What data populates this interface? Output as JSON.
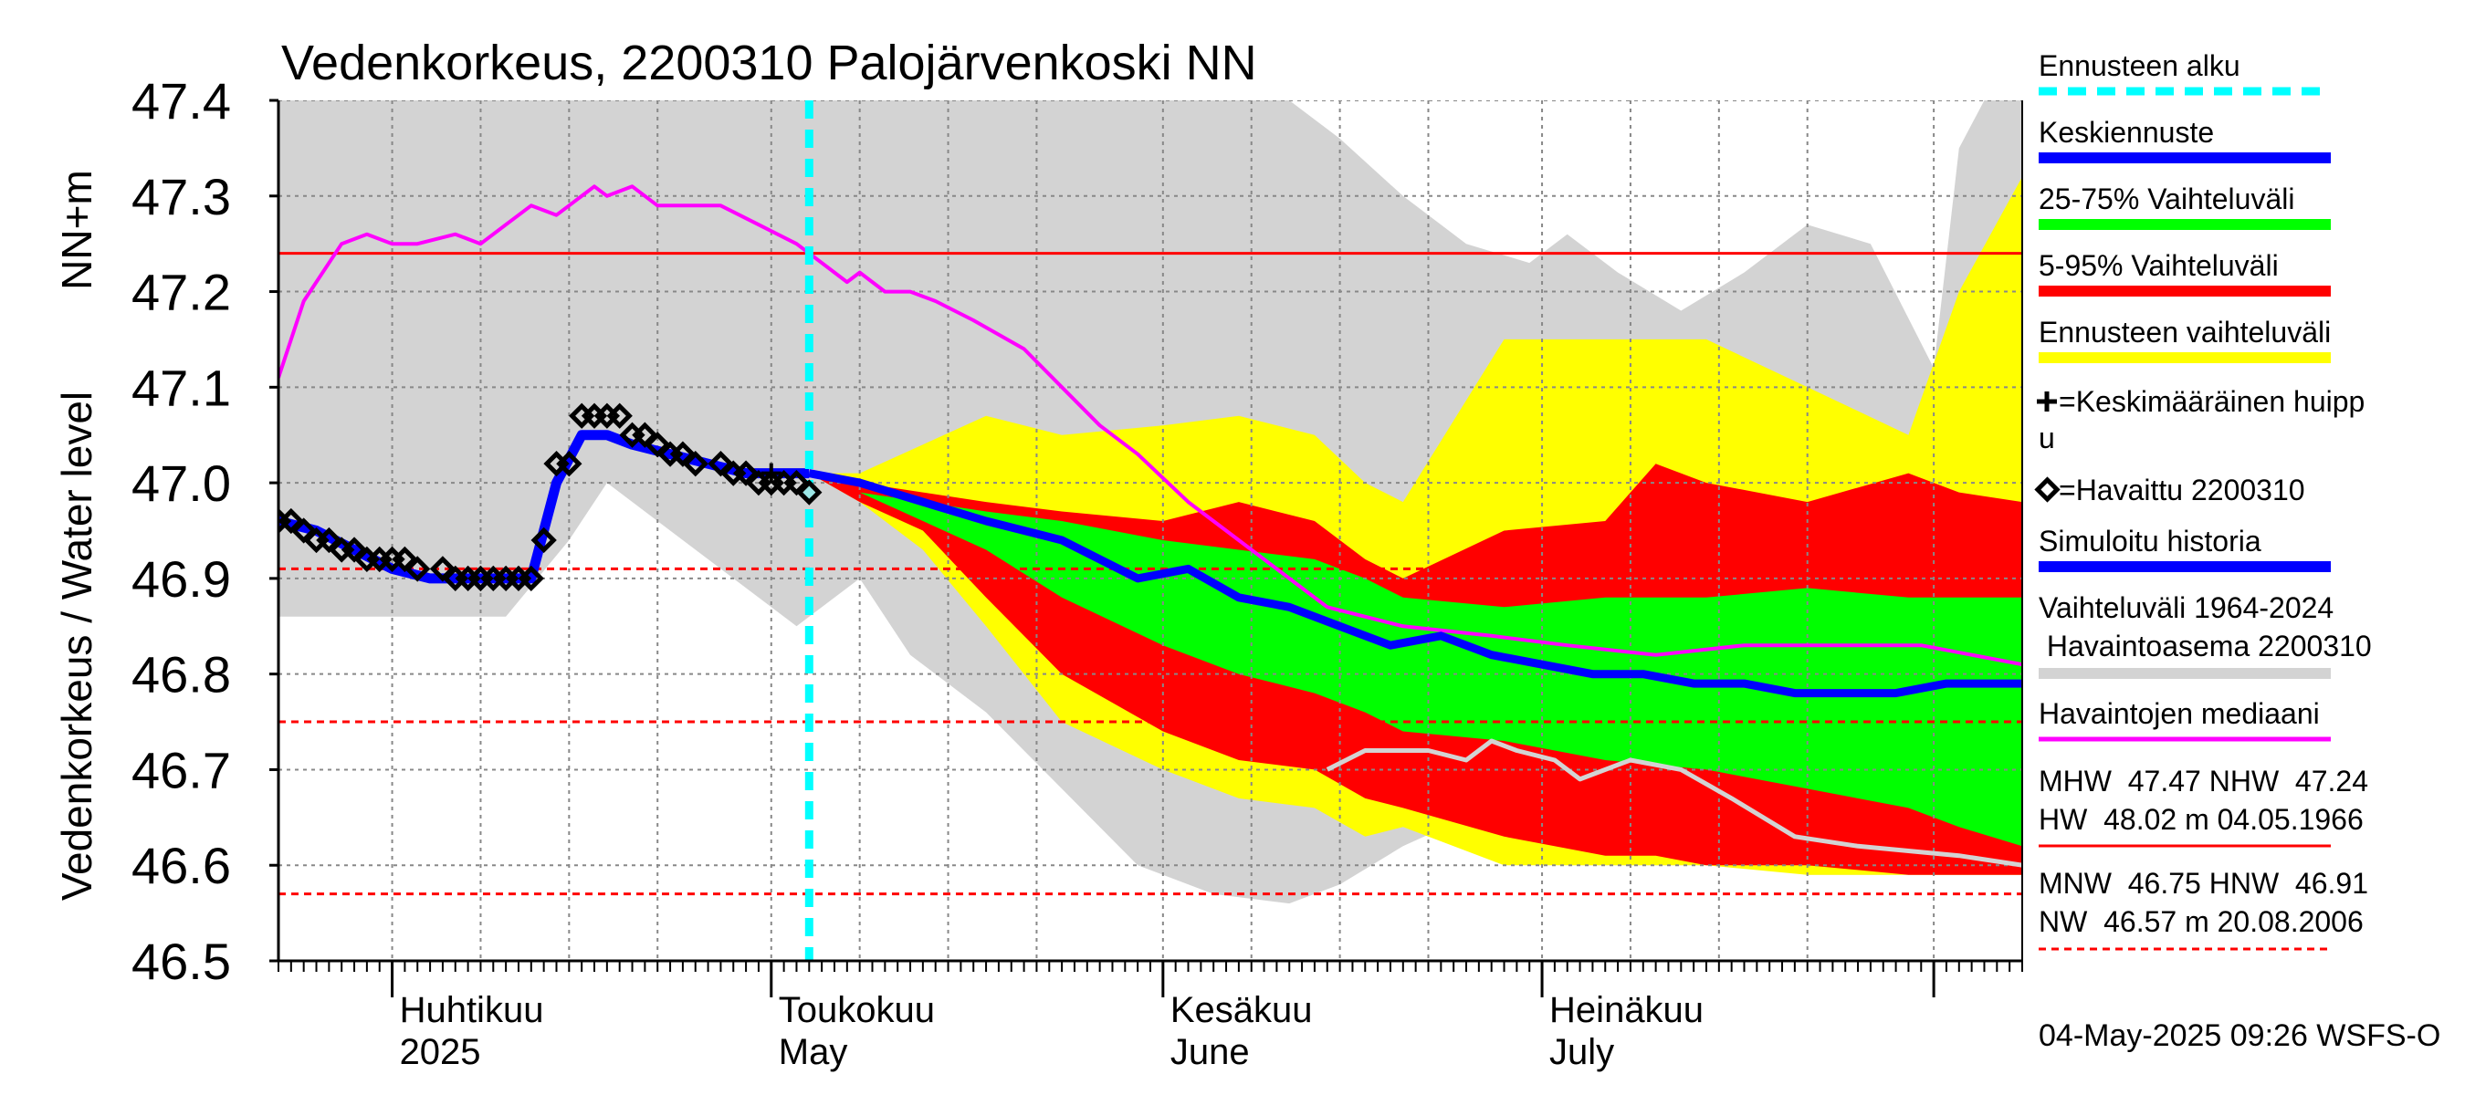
{
  "chart_data": {
    "type": "area",
    "title": "Vedenkorkeus, 2200310 Palojärvenkoski NN",
    "ylabel": "Vedenkorkeus / Water level",
    "yunit": "NN+m",
    "ylim": [
      46.5,
      47.4
    ],
    "yticks": [
      "46.5",
      "46.6",
      "46.7",
      "46.8",
      "46.9",
      "47.0",
      "47.1",
      "47.2",
      "47.3",
      "47.4"
    ],
    "xlim": [
      "2025-03-23",
      "2025-08-08"
    ],
    "x_month_labels": [
      {
        "date": "2025-04-01",
        "line1": "Huhtikuu",
        "line2": "2025"
      },
      {
        "date": "2025-05-01",
        "line1": "Toukokuu",
        "line2": "May"
      },
      {
        "date": "2025-06-01",
        "line1": "Kesäkuu",
        "line2": "June"
      },
      {
        "date": "2025-07-01",
        "line1": "Heinäkuu",
        "line2": "July"
      }
    ],
    "grid": true,
    "legend_position": "right",
    "forecast_start": "2025-05-04",
    "reference_lines": [
      {
        "name": "NHW",
        "value": 47.24,
        "style": "solid",
        "color": "#ff0000"
      },
      {
        "name": "HNW",
        "value": 46.91,
        "style": "dashed",
        "color": "#ff0000"
      },
      {
        "name": "MNW",
        "value": 46.75,
        "style": "dashed",
        "color": "#ff0000"
      },
      {
        "name": "NW",
        "value": 46.57,
        "style": "dashed",
        "color": "#ff0000"
      }
    ],
    "bands": [
      {
        "name": "Vaihteluväli 1964-2024 Havaintoasema 2200310",
        "color": "#d3d3d3",
        "x": [
          "2025-03-23",
          "2025-03-28",
          "2025-04-03",
          "2025-04-10",
          "2025-04-15",
          "2025-04-18",
          "2025-04-22",
          "2025-04-26",
          "2025-04-30",
          "2025-05-03",
          "2025-05-08",
          "2025-05-12",
          "2025-05-18",
          "2025-05-24",
          "2025-05-30",
          "2025-06-05",
          "2025-06-11",
          "2025-06-15",
          "2025-06-20",
          "2025-06-25",
          "2025-06-30",
          "2025-07-03",
          "2025-07-07",
          "2025-07-12",
          "2025-07-17",
          "2025-07-22",
          "2025-07-27",
          "2025-08-01",
          "2025-08-03",
          "2025-08-05",
          "2025-08-08"
        ],
        "upper": [
          47.4,
          47.4,
          47.4,
          47.4,
          47.4,
          47.4,
          47.4,
          47.4,
          47.4,
          47.4,
          47.4,
          47.4,
          47.4,
          47.4,
          47.4,
          47.4,
          47.4,
          47.36,
          47.3,
          47.25,
          47.23,
          47.26,
          47.22,
          47.18,
          47.22,
          47.27,
          47.25,
          47.12,
          47.35,
          47.4,
          47.4
        ],
        "lower": [
          46.86,
          46.86,
          46.86,
          46.86,
          46.94,
          47.0,
          46.96,
          46.92,
          46.88,
          46.85,
          46.9,
          46.82,
          46.76,
          46.68,
          46.6,
          46.57,
          46.56,
          46.58,
          46.62,
          46.65,
          46.62,
          46.6,
          46.6,
          46.6,
          46.6,
          46.59,
          46.59,
          46.59,
          46.59,
          46.59,
          46.59
        ]
      },
      {
        "name": "Ennusteen vaihteluväli",
        "color": "#ffff00",
        "x": [
          "2025-05-04",
          "2025-05-08",
          "2025-05-13",
          "2025-05-18",
          "2025-05-24",
          "2025-06-01",
          "2025-06-07",
          "2025-06-13",
          "2025-06-17",
          "2025-06-20",
          "2025-06-28",
          "2025-07-06",
          "2025-07-14",
          "2025-07-22",
          "2025-07-30",
          "2025-08-03",
          "2025-08-08"
        ],
        "upper": [
          47.01,
          47.01,
          47.04,
          47.07,
          47.05,
          47.06,
          47.07,
          47.05,
          47.0,
          46.98,
          47.15,
          47.15,
          47.15,
          47.1,
          47.05,
          47.2,
          47.32
        ],
        "lower": [
          47.01,
          46.98,
          46.93,
          46.85,
          46.75,
          46.7,
          46.67,
          46.66,
          46.63,
          46.64,
          46.6,
          46.6,
          46.6,
          46.59,
          46.59,
          46.59,
          46.59
        ]
      },
      {
        "name": "5-95% Vaihteluväli",
        "color": "#ff0000",
        "x": [
          "2025-05-04",
          "2025-05-08",
          "2025-05-13",
          "2025-05-18",
          "2025-05-24",
          "2025-06-01",
          "2025-06-07",
          "2025-06-13",
          "2025-06-17",
          "2025-06-20",
          "2025-06-28",
          "2025-07-06",
          "2025-07-10",
          "2025-07-14",
          "2025-07-22",
          "2025-07-30",
          "2025-08-03",
          "2025-08-08"
        ],
        "upper": [
          47.01,
          47.0,
          46.99,
          46.98,
          46.97,
          46.96,
          46.98,
          46.96,
          46.92,
          46.9,
          46.95,
          46.96,
          47.02,
          47.0,
          46.98,
          47.01,
          46.99,
          46.98
        ],
        "lower": [
          47.01,
          46.98,
          46.95,
          46.88,
          46.8,
          46.74,
          46.71,
          46.7,
          46.67,
          46.66,
          46.63,
          46.61,
          46.61,
          46.6,
          46.6,
          46.59,
          46.59,
          46.59
        ]
      },
      {
        "name": "25-75% Vaihteluväli",
        "color": "#00ff00",
        "x": [
          "2025-05-04",
          "2025-05-08",
          "2025-05-13",
          "2025-05-18",
          "2025-05-24",
          "2025-06-01",
          "2025-06-07",
          "2025-06-13",
          "2025-06-17",
          "2025-06-20",
          "2025-06-28",
          "2025-07-06",
          "2025-07-14",
          "2025-07-22",
          "2025-07-30",
          "2025-08-03",
          "2025-08-08"
        ],
        "upper": [
          47.01,
          46.99,
          46.98,
          46.97,
          46.96,
          46.94,
          46.93,
          46.92,
          46.9,
          46.88,
          46.87,
          46.88,
          46.88,
          46.89,
          46.88,
          46.88,
          46.88
        ],
        "lower": [
          47.01,
          46.99,
          46.96,
          46.93,
          46.88,
          46.83,
          46.8,
          46.78,
          46.76,
          46.74,
          46.73,
          46.71,
          46.7,
          46.68,
          46.66,
          46.64,
          46.62
        ]
      }
    ],
    "series": [
      {
        "name": "Havaintojen mediaani",
        "color": "#ff00ff",
        "x": [
          "2025-03-23",
          "2025-03-25",
          "2025-03-28",
          "2025-03-30",
          "2025-04-01",
          "2025-04-03",
          "2025-04-06",
          "2025-04-08",
          "2025-04-10",
          "2025-04-12",
          "2025-04-14",
          "2025-04-15",
          "2025-04-17",
          "2025-04-18",
          "2025-04-20",
          "2025-04-22",
          "2025-04-25",
          "2025-04-27",
          "2025-04-30",
          "2025-05-03",
          "2025-05-04",
          "2025-05-07",
          "2025-05-08",
          "2025-05-10",
          "2025-05-12",
          "2025-05-14",
          "2025-05-17",
          "2025-05-21",
          "2025-05-24",
          "2025-05-27",
          "2025-05-30",
          "2025-06-03",
          "2025-06-07",
          "2025-06-11",
          "2025-06-14",
          "2025-06-20",
          "2025-06-27",
          "2025-07-03",
          "2025-07-10",
          "2025-07-17",
          "2025-07-24",
          "2025-07-31",
          "2025-08-08"
        ],
        "y": [
          47.11,
          47.19,
          47.25,
          47.26,
          47.25,
          47.25,
          47.26,
          47.25,
          47.27,
          47.29,
          47.28,
          47.29,
          47.31,
          47.3,
          47.31,
          47.29,
          47.29,
          47.29,
          47.27,
          47.25,
          47.24,
          47.21,
          47.22,
          47.2,
          47.2,
          47.19,
          47.17,
          47.14,
          47.1,
          47.06,
          47.03,
          46.98,
          46.94,
          46.9,
          46.87,
          46.85,
          46.84,
          46.83,
          46.82,
          46.83,
          46.83,
          46.83,
          46.81
        ]
      },
      {
        "name": "Keskiennuste",
        "color": "#0000ff",
        "x": [
          "2025-05-04",
          "2025-05-08",
          "2025-05-13",
          "2025-05-18",
          "2025-05-24",
          "2025-05-30",
          "2025-06-03",
          "2025-06-07",
          "2025-06-11",
          "2025-06-15",
          "2025-06-19",
          "2025-06-23",
          "2025-06-27",
          "2025-07-01",
          "2025-07-05",
          "2025-07-09",
          "2025-07-13",
          "2025-07-17",
          "2025-07-21",
          "2025-07-25",
          "2025-07-29",
          "2025-08-02",
          "2025-08-08"
        ],
        "y": [
          47.01,
          47.0,
          46.98,
          46.96,
          46.94,
          46.9,
          46.91,
          46.88,
          46.87,
          46.85,
          46.83,
          46.84,
          46.82,
          46.81,
          46.8,
          46.8,
          46.79,
          46.79,
          46.78,
          46.78,
          46.78,
          46.79,
          46.79
        ]
      },
      {
        "name": "Simuloitu historia",
        "color": "#0000ff",
        "x": [
          "2025-03-23",
          "2025-03-26",
          "2025-03-29",
          "2025-04-01",
          "2025-04-04",
          "2025-04-07",
          "2025-04-10",
          "2025-04-12",
          "2025-04-14",
          "2025-04-16",
          "2025-04-18",
          "2025-04-20",
          "2025-04-23",
          "2025-04-26",
          "2025-04-29",
          "2025-05-02",
          "2025-05-04"
        ],
        "y": [
          46.96,
          46.95,
          46.93,
          46.91,
          46.9,
          46.9,
          46.9,
          46.9,
          47.0,
          47.05,
          47.05,
          47.04,
          47.03,
          47.02,
          47.01,
          47.01,
          47.01
        ]
      },
      {
        "name": "lowest observed",
        "color": "#d3d3d3",
        "x": [
          "2025-06-14",
          "2025-06-17",
          "2025-06-22",
          "2025-06-25",
          "2025-06-27",
          "2025-06-29",
          "2025-07-02",
          "2025-07-04",
          "2025-07-08",
          "2025-07-12",
          "2025-07-16",
          "2025-07-21",
          "2025-07-26",
          "2025-08-03",
          "2025-08-08"
        ],
        "y": [
          46.7,
          46.72,
          46.72,
          46.71,
          46.73,
          46.72,
          46.71,
          46.69,
          46.71,
          46.7,
          46.67,
          46.63,
          46.62,
          46.61,
          46.6
        ]
      }
    ],
    "observed": {
      "name": "Havaittu 2200310",
      "x": [
        "2025-03-23",
        "2025-03-24",
        "2025-03-25",
        "2025-03-26",
        "2025-03-27",
        "2025-03-28",
        "2025-03-29",
        "2025-03-30",
        "2025-03-31",
        "2025-04-01",
        "2025-04-02",
        "2025-04-03",
        "2025-04-05",
        "2025-04-06",
        "2025-04-07",
        "2025-04-08",
        "2025-04-09",
        "2025-04-10",
        "2025-04-11",
        "2025-04-12",
        "2025-04-13",
        "2025-04-14",
        "2025-04-15",
        "2025-04-16",
        "2025-04-17",
        "2025-04-18",
        "2025-04-19",
        "2025-04-20",
        "2025-04-21",
        "2025-04-22",
        "2025-04-23",
        "2025-04-24",
        "2025-04-25",
        "2025-04-27",
        "2025-04-28",
        "2025-04-29",
        "2025-04-30",
        "2025-05-01",
        "2025-05-02",
        "2025-05-03",
        "2025-05-04"
      ],
      "y": [
        46.96,
        46.96,
        46.95,
        46.94,
        46.94,
        46.93,
        46.93,
        46.92,
        46.92,
        46.92,
        46.92,
        46.91,
        46.91,
        46.9,
        46.9,
        46.9,
        46.9,
        46.9,
        46.9,
        46.9,
        46.94,
        47.02,
        47.02,
        47.07,
        47.07,
        47.07,
        47.07,
        47.05,
        47.05,
        47.04,
        47.03,
        47.03,
        47.02,
        47.02,
        47.01,
        47.01,
        47.0,
        47.0,
        47.0,
        47.0,
        46.99
      ]
    },
    "mean_peak": {
      "x": "2025-05-01",
      "y": 47.01
    }
  },
  "legend": {
    "items": [
      {
        "label": "Ennusteen alku",
        "color": "#00ffff",
        "style": "dashed"
      },
      {
        "label": "Keskiennuste",
        "color": "#0000ff",
        "style": "solid"
      },
      {
        "label": "25-75% Vaihteluväli",
        "color": "#00ff00",
        "style": "solid"
      },
      {
        "label": "5-95% Vaihteluväli",
        "color": "#ff0000",
        "style": "solid"
      },
      {
        "label": "Ennusteen vaihteluväli",
        "color": "#ffff00",
        "style": "solid"
      }
    ],
    "mean_peak_line1": "=Keskimääräinen huipp",
    "mean_peak_line2": "u",
    "observed_label": "=Havaittu 2200310",
    "simulated": {
      "label": "Simuloitu historia",
      "color": "#0000ff"
    },
    "range_line1": "Vaihteluväli 1964-2024",
    "range_line2": " Havaintoasema 2200310",
    "range_color": "#d3d3d3",
    "median": {
      "label": "Havaintojen mediaani",
      "color": "#ff00ff"
    },
    "stats_high_line1": "MHW  47.47 NHW  47.24",
    "stats_high_line2": "HW  48.02 m 04.05.1966",
    "stats_low_line1": "MNW  46.75 HNW  46.91",
    "stats_low_line2": "NW  46.57 m 20.08.2006"
  },
  "footer": "04-May-2025 09:26 WSFS-O"
}
